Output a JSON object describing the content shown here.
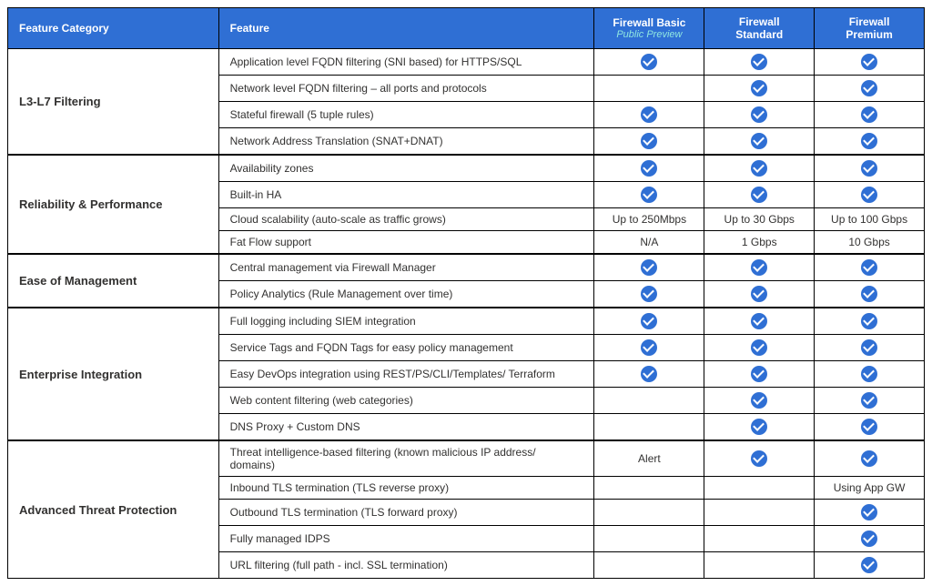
{
  "headers": {
    "category": "Feature Category",
    "feature": "Feature",
    "col1_title": "Firewall Basic",
    "col1_subtitle": "Public Preview",
    "col2_title": "Firewall Standard",
    "col3_title": "Firewall Premium"
  },
  "styling": {
    "header_bg": "#2f6fd4",
    "header_text": "#ffffff",
    "subtitle_color": "#8fe6e0",
    "check_bg": "#2f6fd4",
    "check_tick": "#ffffff",
    "border_color": "#000000",
    "cell_bg": "#ffffff",
    "text_color": "#323130",
    "font_family": "Segoe UI",
    "header_fontsize_pt": 12,
    "cell_fontsize_pt": 12,
    "column_widths_pct": [
      23,
      41,
      12,
      12,
      12
    ]
  },
  "categories": [
    {
      "name": "L3-L7 Filtering",
      "rows": [
        {
          "feature": "Application level FQDN filtering (SNI based) for HTTPS/SQL",
          "basic": "check",
          "standard": "check",
          "premium": "check"
        },
        {
          "feature": "Network level FQDN filtering – all ports and protocols",
          "basic": "",
          "standard": "check",
          "premium": "check"
        },
        {
          "feature": "Stateful firewall (5 tuple rules)",
          "basic": "check",
          "standard": "check",
          "premium": "check"
        },
        {
          "feature": "Network Address Translation (SNAT+DNAT)",
          "basic": "check",
          "standard": "check",
          "premium": "check"
        }
      ]
    },
    {
      "name": "Reliability & Performance",
      "rows": [
        {
          "feature": "Availability zones",
          "basic": "check",
          "standard": "check",
          "premium": "check"
        },
        {
          "feature": "Built-in HA",
          "basic": "check",
          "standard": "check",
          "premium": "check"
        },
        {
          "feature": "Cloud scalability (auto-scale as traffic grows)",
          "basic": "Up to 250Mbps",
          "standard": "Up to 30 Gbps",
          "premium": "Up to 100 Gbps"
        },
        {
          "feature": "Fat Flow support",
          "basic": "N/A",
          "standard": "1 Gbps",
          "premium": "10 Gbps"
        }
      ]
    },
    {
      "name": "Ease of Management",
      "rows": [
        {
          "feature": "Central management via Firewall Manager",
          "basic": "check",
          "standard": "check",
          "premium": "check"
        },
        {
          "feature": "Policy Analytics (Rule Management over time)",
          "basic": "check",
          "standard": "check",
          "premium": "check"
        }
      ]
    },
    {
      "name": "Enterprise Integration",
      "rows": [
        {
          "feature": "Full logging including SIEM integration",
          "basic": "check",
          "standard": "check",
          "premium": "check"
        },
        {
          "feature": "Service Tags and FQDN Tags for easy policy management",
          "basic": "check",
          "standard": "check",
          "premium": "check"
        },
        {
          "feature": "Easy DevOps integration using REST/PS/CLI/Templates/ Terraform",
          "basic": "check",
          "standard": "check",
          "premium": "check"
        },
        {
          "feature": "Web content filtering (web categories)",
          "basic": "",
          "standard": "check",
          "premium": "check"
        },
        {
          "feature": "DNS Proxy + Custom DNS",
          "basic": "",
          "standard": "check",
          "premium": "check"
        }
      ]
    },
    {
      "name": "Advanced Threat Protection",
      "rows": [
        {
          "feature": "Threat intelligence-based filtering (known malicious IP address/ domains)",
          "basic": "Alert",
          "standard": "check",
          "premium": "check"
        },
        {
          "feature": "Inbound TLS termination (TLS reverse proxy)",
          "basic": "",
          "standard": "",
          "premium": "Using App GW"
        },
        {
          "feature": "Outbound TLS termination (TLS forward proxy)",
          "basic": "",
          "standard": "",
          "premium": "check"
        },
        {
          "feature": "Fully managed IDPS",
          "basic": "",
          "standard": "",
          "premium": "check"
        },
        {
          "feature": "URL filtering (full path - incl. SSL termination)",
          "basic": "",
          "standard": "",
          "premium": "check"
        }
      ]
    }
  ]
}
